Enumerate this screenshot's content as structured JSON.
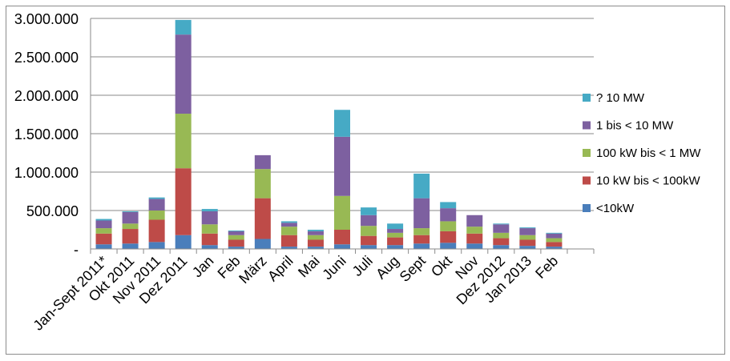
{
  "chart_data": {
    "type": "bar",
    "stacked": true,
    "title": "",
    "xlabel": "",
    "ylabel": "",
    "ylim": [
      0,
      3000000
    ],
    "yticks": [
      0,
      500000,
      1000000,
      1500000,
      2000000,
      2500000,
      3000000
    ],
    "ytick_labels": [
      "-",
      "500.000",
      "1.000.000",
      "1.500.000",
      "2.000.000",
      "2.500.000",
      "3.000.000"
    ],
    "grid": true,
    "legend_position": "right",
    "categories": [
      "Jan-Sept 2011*",
      "Okt 2011",
      "Nov 2011",
      "Dez 2011",
      "Jan",
      "Feb",
      "März",
      "April",
      "Mai",
      "Juni",
      "Juli",
      "Aug",
      "Sept",
      "Okt",
      "Nov",
      "Dez 2012",
      "Jan 2013",
      "Feb"
    ],
    "series": [
      {
        "name": "<10kW",
        "color": "#4a7ebb",
        "values": [
          60000,
          70000,
          90000,
          180000,
          50000,
          30000,
          130000,
          30000,
          30000,
          60000,
          50000,
          50000,
          70000,
          80000,
          70000,
          50000,
          40000,
          30000
        ]
      },
      {
        "name": "10 kW bis < 100kW",
        "color": "#be4b48",
        "values": [
          140000,
          190000,
          290000,
          870000,
          150000,
          90000,
          530000,
          150000,
          90000,
          190000,
          120000,
          100000,
          110000,
          150000,
          130000,
          90000,
          80000,
          60000
        ]
      },
      {
        "name": "100 kW bis < 1 MW",
        "color": "#98b954",
        "values": [
          70000,
          70000,
          120000,
          710000,
          120000,
          60000,
          380000,
          110000,
          60000,
          440000,
          130000,
          60000,
          90000,
          130000,
          90000,
          70000,
          60000,
          50000
        ]
      },
      {
        "name": "1 bis < 10 MW",
        "color": "#7d60a0",
        "values": [
          100000,
          150000,
          150000,
          1030000,
          170000,
          50000,
          180000,
          50000,
          50000,
          770000,
          140000,
          50000,
          390000,
          170000,
          150000,
          110000,
          90000,
          60000
        ]
      },
      {
        "name": "? 10 MW",
        "color": "#46aac5",
        "values": [
          20000,
          10000,
          20000,
          190000,
          30000,
          10000,
          0,
          20000,
          20000,
          350000,
          100000,
          70000,
          320000,
          80000,
          0,
          10000,
          10000,
          10000
        ]
      }
    ],
    "legend_order": [
      "? 10 MW",
      "1 bis < 10 MW",
      "100 kW bis < 1 MW",
      "10 kW bis < 100kW",
      "<10kW"
    ]
  }
}
